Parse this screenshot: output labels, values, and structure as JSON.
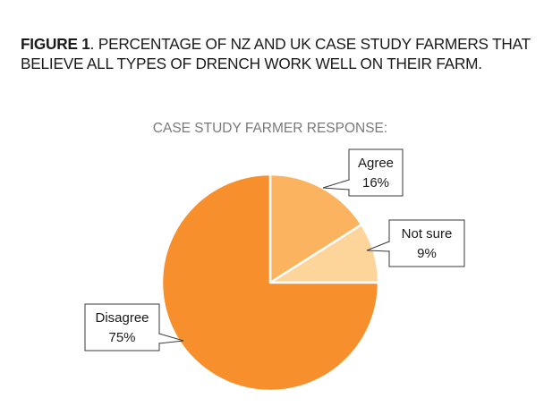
{
  "figure": {
    "label": "FIGURE 1",
    "caption": ". PERCENTAGE OF NZ AND UK CASE STUDY FARMERS THAT BELIEVE ALL TYPES OF DRENCH WORK WELL ON THEIR FARM."
  },
  "chart_data": {
    "type": "pie",
    "title": "CASE STUDY FARMER RESPONSE:",
    "slices": [
      {
        "label": "Agree",
        "value": 16,
        "value_label": "16%",
        "color": "#fbb35f"
      },
      {
        "label": "Not sure",
        "value": 9,
        "value_label": "9%",
        "color": "#fdd49a"
      },
      {
        "label": "Disagree",
        "value": 75,
        "value_label": "75%",
        "color": "#f7902c"
      }
    ],
    "start_angle_deg": 0,
    "direction": "clockwise",
    "slice_edge_color": "#ffffff",
    "label_style": "callout boxes with category name and percentage"
  }
}
